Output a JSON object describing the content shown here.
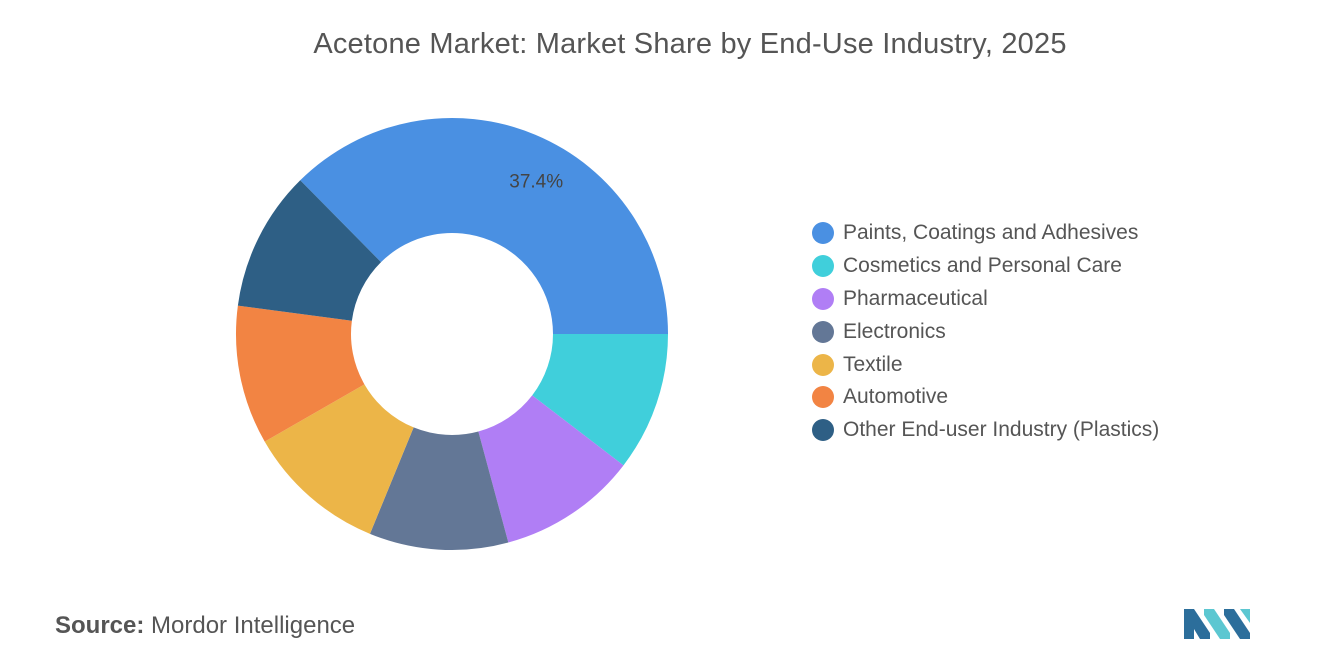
{
  "chart_data": {
    "type": "pie",
    "title": "Acetone Market: Market Share by End-Use Industry, 2025",
    "donut": true,
    "categories": [
      "Paints, Coatings and Adhesives",
      "Cosmetics and Personal Care",
      "Pharmaceutical",
      "Electronics",
      "Textile",
      "Automotive",
      "Other End-user Industry (Plastics)"
    ],
    "values": [
      37.4,
      10.4,
      10.4,
      10.4,
      10.5,
      10.4,
      10.5
    ],
    "colors": [
      "#4a90e2",
      "#40cfdb",
      "#b07ef5",
      "#637796",
      "#ecb548",
      "#f28443",
      "#2e5f85"
    ],
    "data_labels": [
      {
        "category": "Paints, Coatings and Adhesives",
        "text": "37.4%"
      }
    ],
    "legend_position": "right"
  },
  "source": {
    "label": "Source:",
    "value": "Mordor Intelligence"
  },
  "logo": {
    "icon": "mordor-intelligence-logo",
    "colors": [
      "#2c6e9b",
      "#5cc7d1"
    ]
  }
}
